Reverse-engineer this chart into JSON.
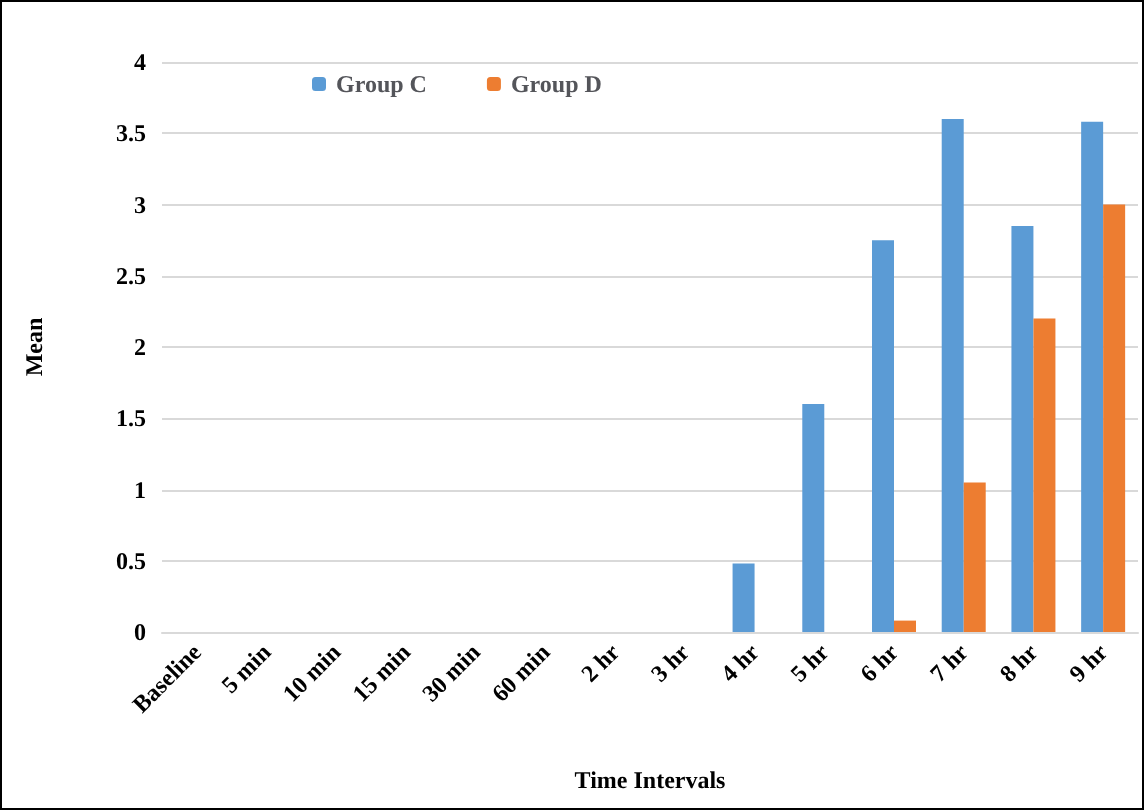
{
  "chart_data": {
    "type": "bar",
    "xlabel": "Time Intervals",
    "ylabel": "Mean",
    "categories": [
      "Baseline",
      "5 min",
      "10 min",
      "15 min",
      "30 min",
      "60 min",
      "2 hr",
      "3 hr",
      "4 hr",
      "5 hr",
      "6 hr",
      "7 hr",
      "8 hr",
      "9 hr"
    ],
    "series": [
      {
        "name": "Group C",
        "color": "#5b9bd5",
        "values": [
          0,
          0,
          0,
          0,
          0,
          0,
          0,
          0,
          0.48,
          1.6,
          2.75,
          3.6,
          2.85,
          3.58
        ]
      },
      {
        "name": "Group D",
        "color": "#ed7d31",
        "values": [
          0,
          0,
          0,
          0,
          0,
          0,
          0,
          0,
          0,
          0,
          0.08,
          1.05,
          2.2,
          3.0
        ]
      }
    ],
    "ylim": [
      0,
      4
    ],
    "yticks": [
      0,
      0.5,
      1,
      1.5,
      2,
      2.5,
      3,
      3.5,
      4
    ],
    "grid": "y",
    "legend": "top left"
  }
}
